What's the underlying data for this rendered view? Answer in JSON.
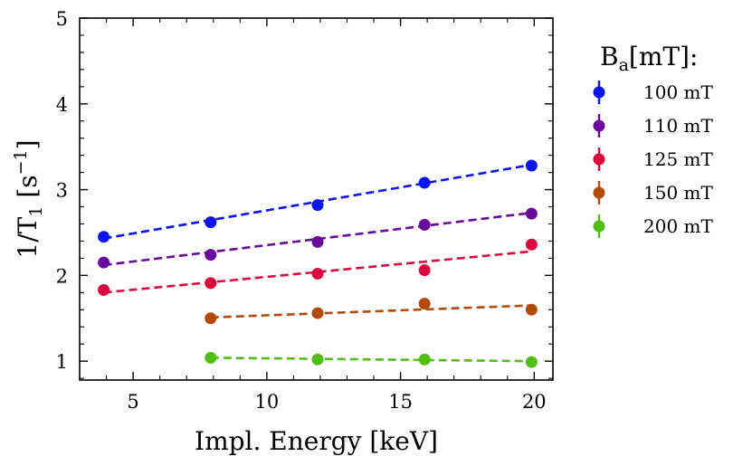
{
  "chart_data": {
    "type": "scatter",
    "xlabel": "Impl. Energy [keV]",
    "ylabel_main": "1/T",
    "ylabel_sub": "1",
    "ylabel_open": " [s",
    "ylabel_sup": "−1",
    "ylabel_close": "]",
    "xlim": [
      3,
      20.7
    ],
    "ylim": [
      0.78,
      5
    ],
    "xticks": [
      5,
      10,
      15,
      20
    ],
    "yticks": [
      1,
      2,
      3,
      4,
      5
    ],
    "grid": false,
    "legend": {
      "placement": "outside-right",
      "title_main": "B",
      "title_sub": "a",
      "title_rest": "[mT]:"
    },
    "series": [
      {
        "name": "100 mT",
        "color": "#0a14f0",
        "x": [
          3.9,
          7.9,
          11.9,
          15.9,
          19.9
        ],
        "y": [
          2.45,
          2.62,
          2.82,
          3.08,
          3.28
        ],
        "fit": [
          [
            3.9,
            2.43
          ],
          [
            19.9,
            3.29
          ]
        ]
      },
      {
        "name": "110 mT",
        "color": "#6a0a9c",
        "x": [
          3.9,
          7.9,
          11.9,
          15.9,
          19.9
        ],
        "y": [
          2.15,
          2.24,
          2.39,
          2.59,
          2.72
        ],
        "fit": [
          [
            3.9,
            2.12
          ],
          [
            19.9,
            2.73
          ]
        ]
      },
      {
        "name": "125 mT",
        "color": "#dc0a3c",
        "x": [
          3.9,
          7.9,
          11.9,
          15.9,
          19.9
        ],
        "y": [
          1.83,
          1.91,
          2.02,
          2.06,
          2.36
        ],
        "fit": [
          [
            3.9,
            1.8
          ],
          [
            19.9,
            2.28
          ]
        ]
      },
      {
        "name": "150 mT",
        "color": "#b44a0a",
        "x": [
          7.9,
          11.9,
          15.9,
          19.9
        ],
        "y": [
          1.5,
          1.56,
          1.67,
          1.6
        ],
        "fit": [
          [
            7.9,
            1.51
          ],
          [
            19.9,
            1.65
          ]
        ]
      },
      {
        "name": "200 mT",
        "color": "#50be14",
        "x": [
          7.9,
          11.9,
          15.9,
          19.9
        ],
        "y": [
          1.04,
          1.02,
          1.02,
          0.99
        ],
        "fit": [
          [
            7.9,
            1.04
          ],
          [
            19.9,
            1.0
          ]
        ]
      }
    ]
  }
}
